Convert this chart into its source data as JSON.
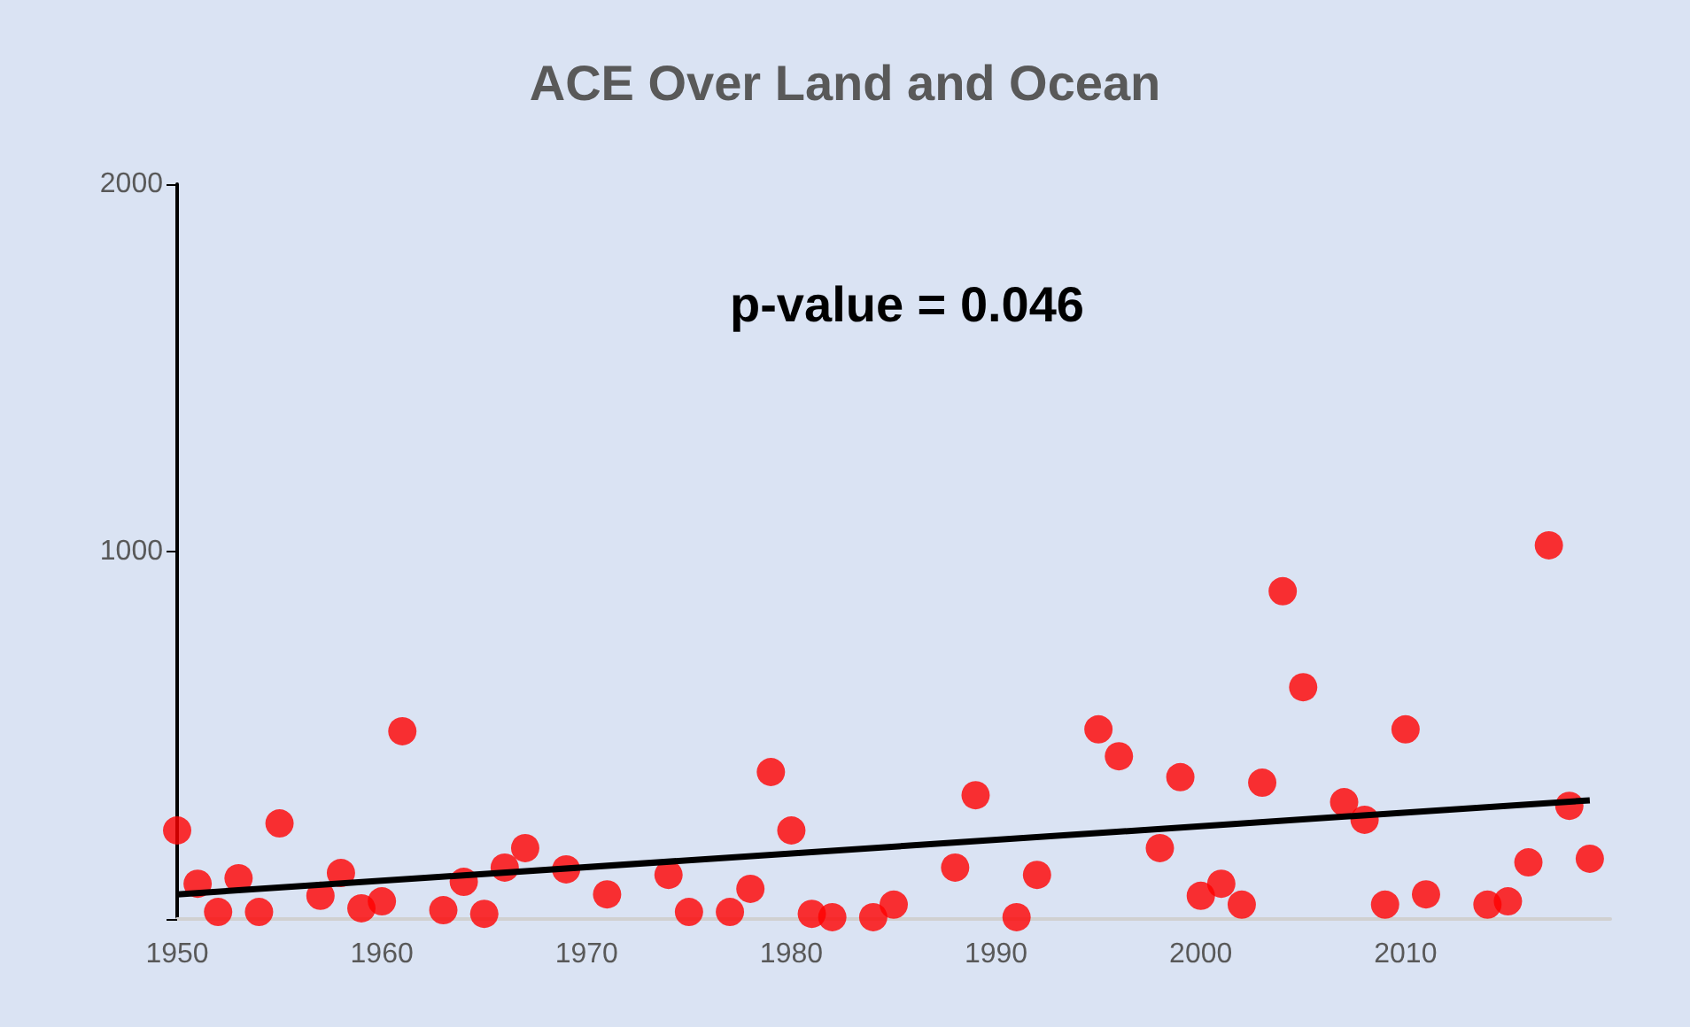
{
  "chart_data": {
    "type": "scatter",
    "title": "ACE Over Land and Ocean",
    "annotations": [
      "p-value = 0.046"
    ],
    "xlim": [
      1950,
      2020
    ],
    "xticks": [
      1950,
      1960,
      1970,
      1980,
      1990,
      2000,
      2010
    ],
    "ylim": [
      0,
      2000
    ],
    "yticks": [
      {
        "value": 0,
        "label": null
      },
      1000,
      2000
    ],
    "grid": false,
    "marker": "circle",
    "series": [
      {
        "color": "#ff0000",
        "x": [
          1950,
          1951,
          1952,
          1953,
          1954,
          1955,
          1957,
          1958,
          1959,
          1960,
          1961,
          1963,
          1964,
          1965,
          1966,
          1967,
          1969,
          1971,
          1974,
          1975,
          1977,
          1978,
          1979,
          1980,
          1981,
          1982,
          1984,
          1985,
          1988,
          1989,
          1991,
          1992,
          1995,
          1996,
          1998,
          1999,
          2000,
          2001,
          2002,
          2003,
          2004,
          2005,
          2007,
          2008,
          2009,
          2010,
          2011,
          2014,
          2015,
          2016,
          2017,
          2018,
          2019
        ],
        "values": [
          241,
          96,
          19,
          111,
          19,
          260,
          63,
          125,
          29,
          48,
          511,
          24,
          101,
          14,
          140,
          193,
          135,
          67,
          120,
          19,
          19,
          82,
          400,
          241,
          14,
          5,
          5,
          39,
          140,
          337,
          5,
          120,
          516,
          443,
          193,
          386,
          63,
          96,
          39,
          371,
          892,
          631,
          318,
          270,
          39,
          516,
          67,
          39,
          48,
          154,
          1017,
          308,
          164
        ]
      },
      {
        "type": "line",
        "color": "#000000",
        "line_style": "solid",
        "marker": "none",
        "x": [
          1950,
          2019
        ],
        "values": [
          67,
          323
        ]
      }
    ]
  }
}
